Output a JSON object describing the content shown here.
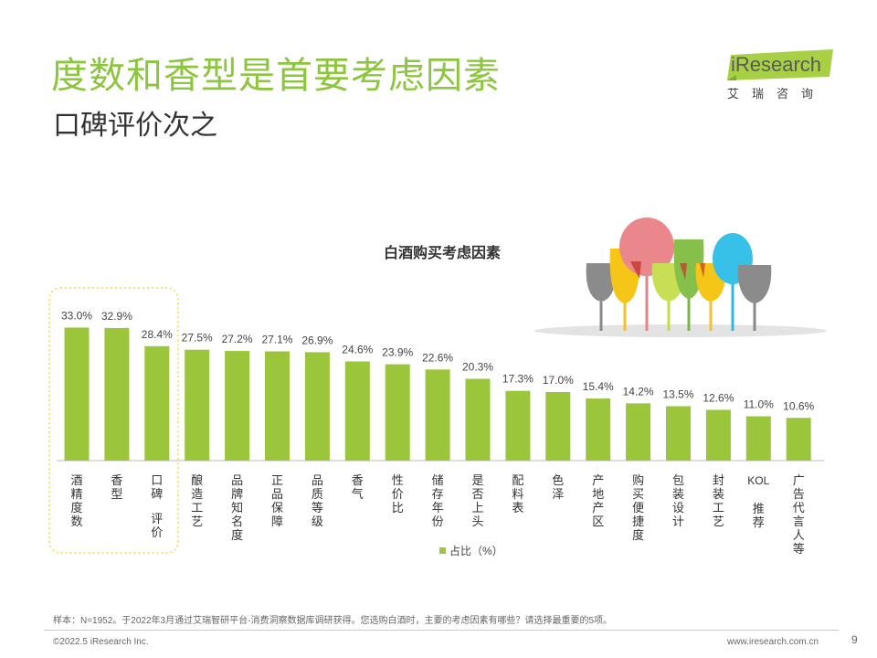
{
  "page": {
    "title": "度数和香型是首要考虑因素",
    "subtitle": "口碑评价次之",
    "logo_text": "iResearch",
    "logo_sub": "艾瑞咨询",
    "note": "样本：N=1952。于2022年3月通过艾瑞智研平台-消费洞察数据库调研获得。您选购白酒时，主要的考虑因素有哪些？请选择最重要的5项。",
    "copyright": "©2022.5 iResearch Inc.",
    "website": "www.iresearch.com.cn",
    "page_number": "9"
  },
  "colors": {
    "accent": "#8cc63f",
    "bar": "#9bc63c",
    "highlight_box": "#f2d94a",
    "text": "#333333"
  },
  "chart_data": {
    "type": "bar",
    "title": "白酒购买考虑因素",
    "categories": [
      "酒精度数",
      "香型",
      "口碑 评价",
      "酿造工艺",
      "品牌知名度",
      "正品保障",
      "品质等级",
      "香气",
      "性价比",
      "储存年份",
      "是否上头",
      "配料表",
      "色泽",
      "产地产区",
      "购买便捷度",
      "包装设计",
      "封装工艺",
      "KOL推荐",
      "广告代言人等"
    ],
    "values": [
      33.0,
      32.9,
      28.4,
      27.5,
      27.2,
      27.1,
      26.9,
      24.6,
      23.9,
      22.6,
      20.3,
      17.3,
      17.0,
      15.4,
      14.2,
      13.5,
      12.6,
      11.0,
      10.6
    ],
    "value_labels": [
      "33.0%",
      "32.9%",
      "28.4%",
      "27.5%",
      "27.2%",
      "27.1%",
      "26.9%",
      "24.6%",
      "23.9%",
      "22.6%",
      "20.3%",
      "17.3%",
      "17.0%",
      "15.4%",
      "14.2%",
      "13.5%",
      "12.6%",
      "11.0%",
      "10.6%"
    ],
    "legend": "占比（%）",
    "legend_position": "bottom",
    "highlighted_categories": [
      "酒精度数",
      "香型",
      "口碑 评价"
    ],
    "grid": false
  }
}
